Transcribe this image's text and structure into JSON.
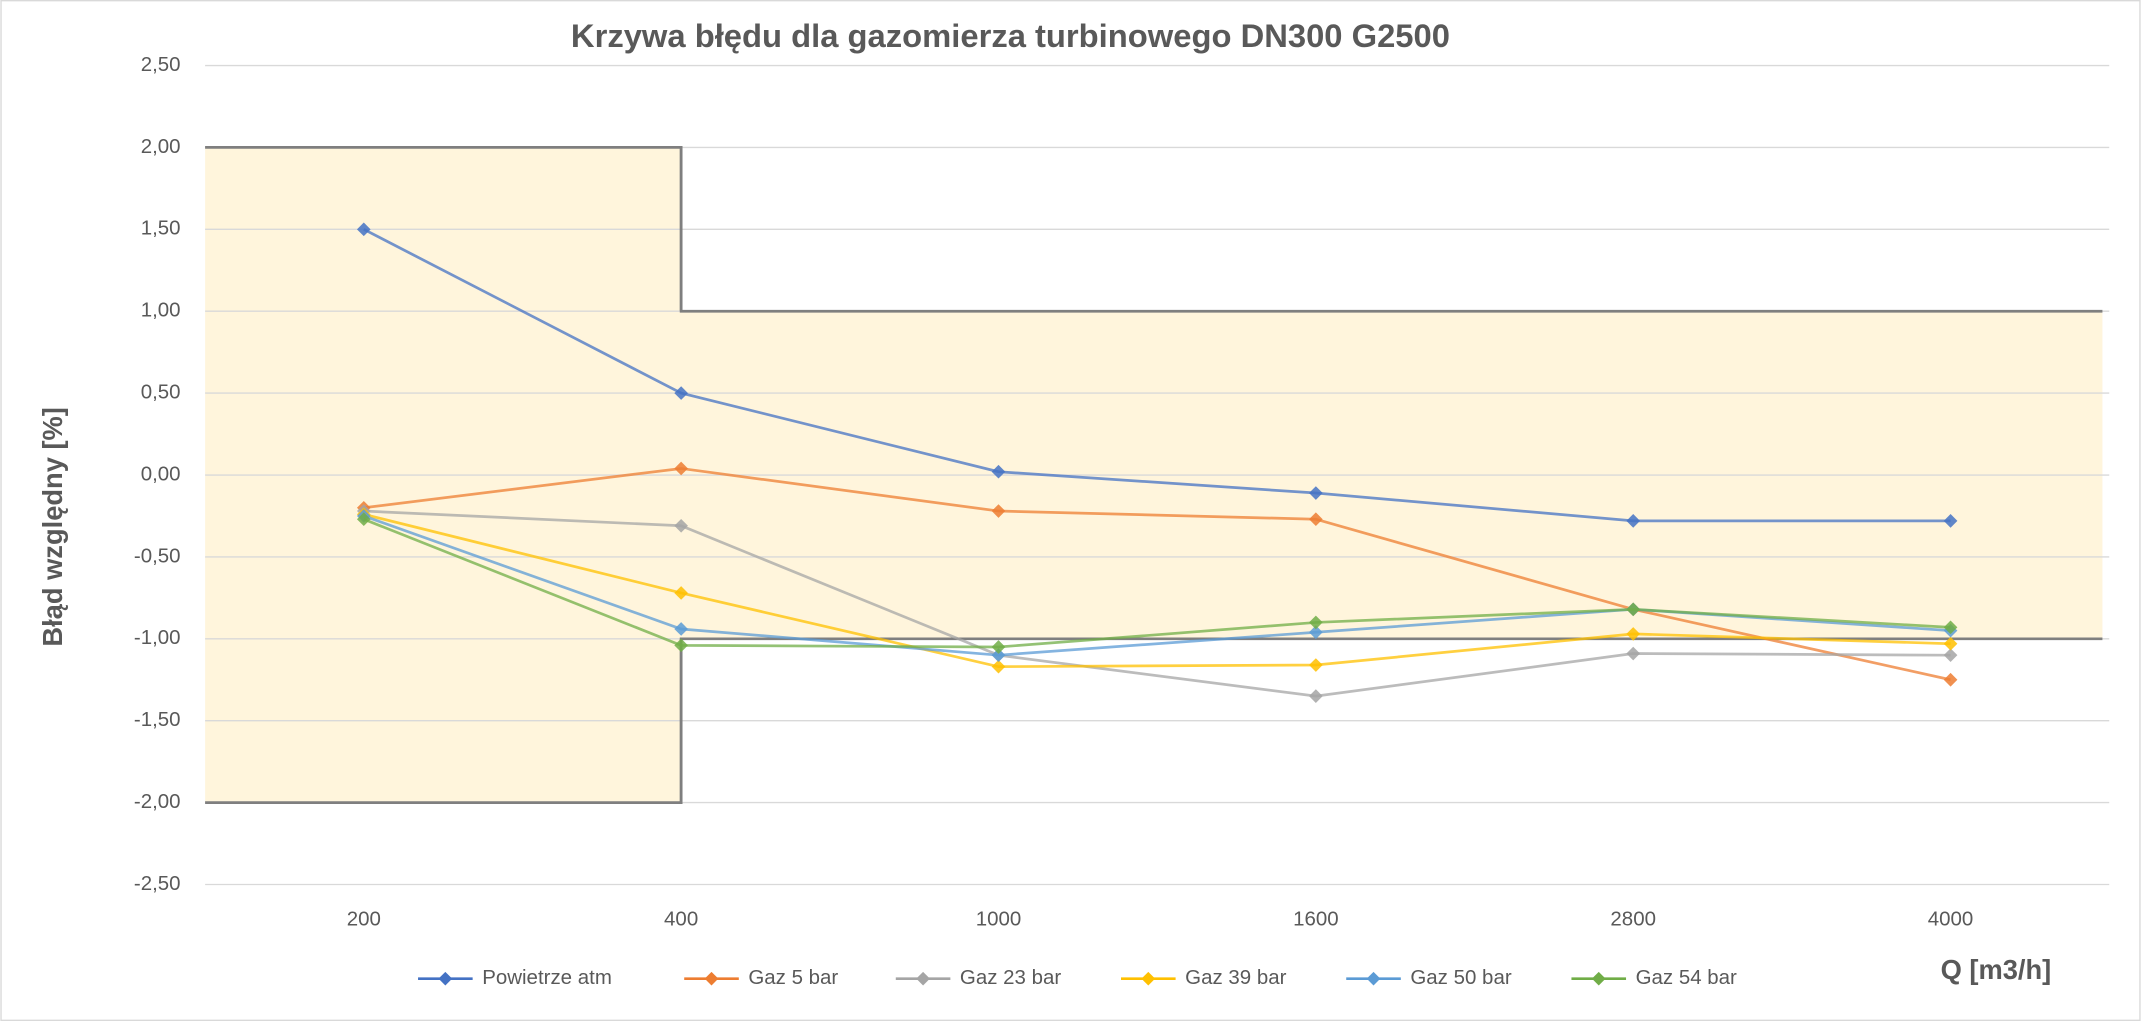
{
  "chart_data": {
    "type": "line",
    "title": "Krzywa błędu dla gazomierza turbinowego DN300 G2500",
    "y_label": "Błąd względny [%]",
    "x_label": "Q [m3/h]",
    "categories": [
      "200",
      "400",
      "1000",
      "1600",
      "2800",
      "4000"
    ],
    "ylim": [
      -2.5,
      2.5
    ],
    "yticks": [
      {
        "value": -2.5,
        "label": "-2,50"
      },
      {
        "value": -2,
        "label": "-2,00"
      },
      {
        "value": -1.5,
        "label": "-1,50"
      },
      {
        "value": -1,
        "label": "-1,00"
      },
      {
        "value": -0.5,
        "label": "-0,50"
      },
      {
        "value": 0,
        "label": "0,00"
      },
      {
        "value": 0.5,
        "label": "0,50"
      },
      {
        "value": 1,
        "label": "1,00"
      },
      {
        "value": 1.5,
        "label": "1,50"
      },
      {
        "value": 2,
        "label": "2,00"
      },
      {
        "value": 2.5,
        "label": "2,50"
      }
    ],
    "grid": true,
    "limits": {
      "color": "#fff5dc",
      "upper": [
        2,
        2,
        1,
        1,
        1,
        1
      ],
      "lower": [
        -2,
        -2,
        -1,
        -1,
        -1,
        -1
      ]
    },
    "series": [
      {
        "name": "Powietrze atm",
        "color": "#4472c4",
        "values": [
          1.5,
          0.5,
          0.02,
          -0.11,
          -0.28,
          -0.28
        ]
      },
      {
        "name": "Gaz 5 bar",
        "color": "#ed7d31",
        "values": [
          -0.2,
          0.04,
          -0.22,
          -0.27,
          -0.82,
          -1.25
        ]
      },
      {
        "name": "Gaz 23 bar",
        "color": "#a5a5a5",
        "values": [
          -0.22,
          -0.31,
          -1.1,
          -1.35,
          -1.09,
          -1.1
        ]
      },
      {
        "name": "Gaz 39 bar",
        "color": "#ffc000",
        "values": [
          -0.24,
          -0.72,
          -1.17,
          -1.16,
          -0.97,
          -1.03
        ]
      },
      {
        "name": "Gaz 50 bar",
        "color": "#5b9bd5",
        "values": [
          -0.25,
          -0.94,
          -1.1,
          -0.96,
          -0.82,
          -0.95
        ]
      },
      {
        "name": "Gaz 54 bar",
        "color": "#70ad47",
        "values": [
          -0.27,
          -1.04,
          -1.05,
          -0.9,
          -0.82,
          -0.93
        ]
      }
    ]
  }
}
